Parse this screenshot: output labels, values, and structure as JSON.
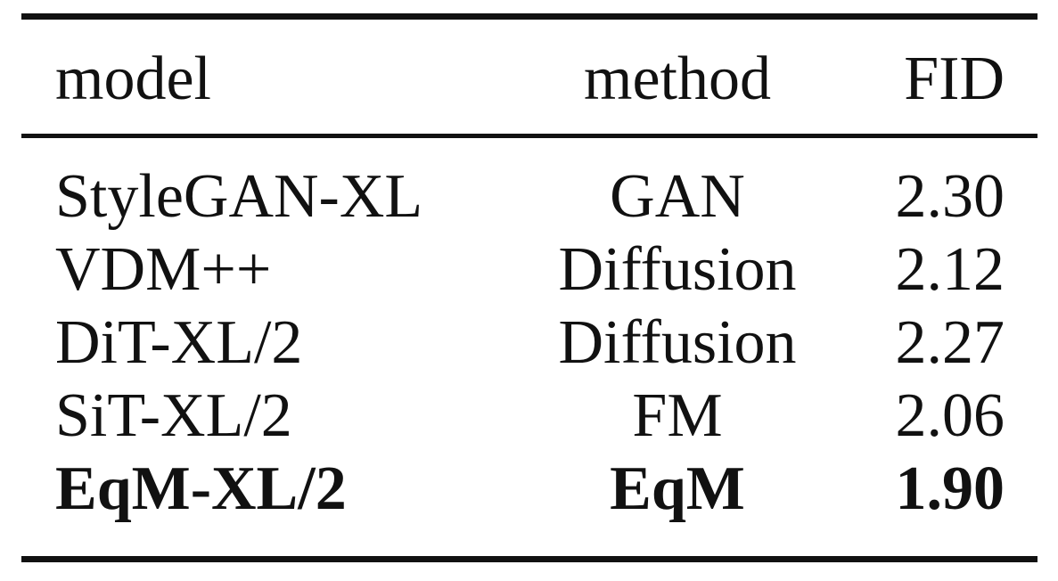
{
  "table": {
    "headers": {
      "model": "model",
      "method": "method",
      "fid": "FID"
    },
    "rows": [
      {
        "model": "StyleGAN-XL",
        "method": "GAN",
        "fid": "2.30",
        "bold": false
      },
      {
        "model": "VDM++",
        "method": "Diffusion",
        "fid": "2.12",
        "bold": false
      },
      {
        "model": "DiT-XL/2",
        "method": "Diffusion",
        "fid": "2.27",
        "bold": false
      },
      {
        "model": "SiT-XL/2",
        "method": "FM",
        "fid": "2.06",
        "bold": false
      },
      {
        "model": "EqM-XL/2",
        "method": "EqM",
        "fid": "1.90",
        "bold": true
      }
    ]
  }
}
